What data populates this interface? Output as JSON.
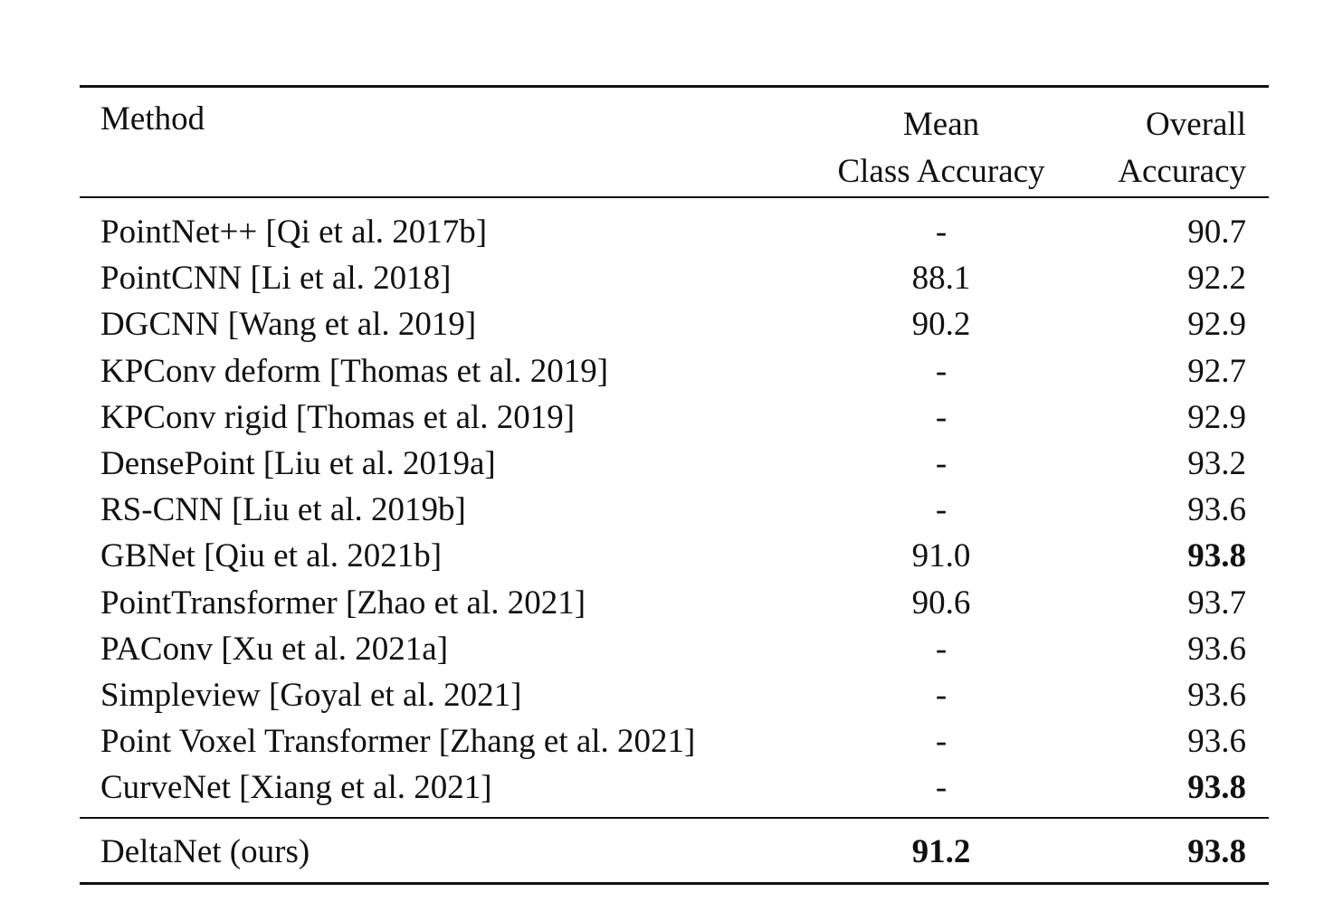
{
  "table": {
    "headers": {
      "method": "Method",
      "mean_line1": "Mean",
      "mean_line2": "Class Accuracy",
      "overall_line1": "Overall",
      "overall_line2": "Accuracy"
    },
    "rows": [
      {
        "method": "PointNet++ [Qi et al. 2017b]",
        "mean": "-",
        "overall": "90.7",
        "mean_bold": false,
        "overall_bold": false
      },
      {
        "method": "PointCNN [Li et al. 2018]",
        "mean": "88.1",
        "overall": "92.2",
        "mean_bold": false,
        "overall_bold": false
      },
      {
        "method": "DGCNN [Wang et al. 2019]",
        "mean": "90.2",
        "overall": "92.9",
        "mean_bold": false,
        "overall_bold": false
      },
      {
        "method": "KPConv deform [Thomas et al. 2019]",
        "mean": "-",
        "overall": "92.7",
        "mean_bold": false,
        "overall_bold": false
      },
      {
        "method": "KPConv rigid [Thomas et al. 2019]",
        "mean": "-",
        "overall": "92.9",
        "mean_bold": false,
        "overall_bold": false
      },
      {
        "method": "DensePoint [Liu et al. 2019a]",
        "mean": "-",
        "overall": "93.2",
        "mean_bold": false,
        "overall_bold": false
      },
      {
        "method": "RS-CNN [Liu et al. 2019b]",
        "mean": "-",
        "overall": "93.6",
        "mean_bold": false,
        "overall_bold": false
      },
      {
        "method": "GBNet [Qiu et al. 2021b]",
        "mean": "91.0",
        "overall": "93.8",
        "mean_bold": false,
        "overall_bold": true
      },
      {
        "method": "PointTransformer [Zhao et al. 2021]",
        "mean": "90.6",
        "overall": "93.7",
        "mean_bold": false,
        "overall_bold": false
      },
      {
        "method": "PAConv [Xu et al. 2021a]",
        "mean": "-",
        "overall": "93.6",
        "mean_bold": false,
        "overall_bold": false
      },
      {
        "method": "Simpleview [Goyal et al. 2021]",
        "mean": "-",
        "overall": "93.6",
        "mean_bold": false,
        "overall_bold": false
      },
      {
        "method": "Point Voxel Transformer [Zhang et al. 2021]",
        "mean": "-",
        "overall": "93.6",
        "mean_bold": false,
        "overall_bold": false
      },
      {
        "method": "CurveNet [Xiang et al. 2021]",
        "mean": "-",
        "overall": "93.8",
        "mean_bold": false,
        "overall_bold": true
      }
    ],
    "ours": {
      "method": "DeltaNet (ours)",
      "mean": "91.2",
      "overall": "93.8",
      "mean_bold": true,
      "overall_bold": true
    }
  }
}
